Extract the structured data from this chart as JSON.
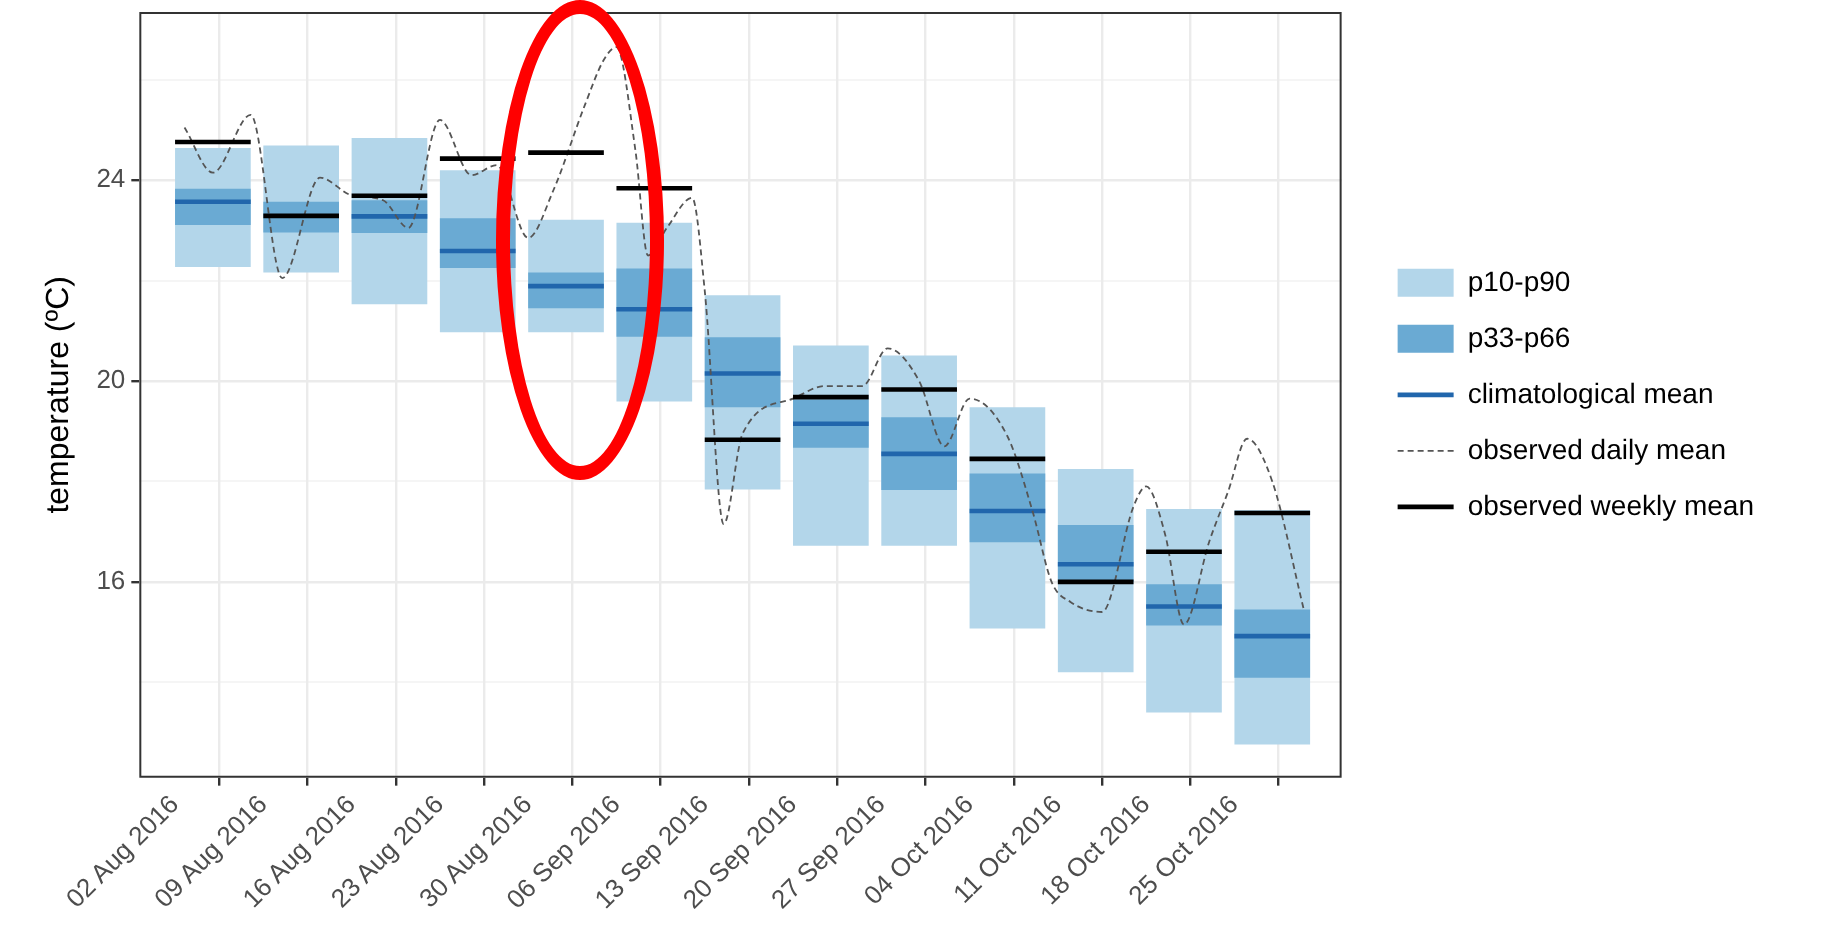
{
  "chart_data": {
    "type": "bar",
    "ylabel": "temperature (ºC)",
    "xlim": [
      "2016-07-30T04:00",
      "2016-11-02T12:00"
    ],
    "xticks": [
      {
        "value": "2016-08-02",
        "label": "02 Aug 2016"
      },
      {
        "value": "2016-08-09",
        "label": "09 Aug 2016"
      },
      {
        "value": "2016-08-16",
        "label": "16 Aug 2016"
      },
      {
        "value": "2016-08-23",
        "label": "23 Aug 2016"
      },
      {
        "value": "2016-08-30",
        "label": "30 Aug 2016"
      },
      {
        "value": "2016-09-06",
        "label": "06 Sep 2016"
      },
      {
        "value": "2016-09-13",
        "label": "13 Sep 2016"
      },
      {
        "value": "2016-09-20",
        "label": "20 Sep 2016"
      },
      {
        "value": "2016-09-27",
        "label": "27 Sep 2016"
      },
      {
        "value": "2016-10-04",
        "label": "04 Oct 2016"
      },
      {
        "value": "2016-10-11",
        "label": "11 Oct 2016"
      },
      {
        "value": "2016-10-18",
        "label": "18 Oct 2016"
      },
      {
        "value": "2016-10-25",
        "label": "25 Oct 2016"
      }
    ],
    "ylim": [
      12.1,
      27.35
    ],
    "yticks": [
      {
        "value": 14,
        "label": null
      },
      16,
      {
        "value": 18,
        "label": null
      },
      20,
      {
        "value": 22,
        "label": null
      },
      24,
      {
        "value": 26,
        "label": null
      }
    ],
    "grid": true,
    "legend": "right",
    "marker": "none",
    "series": [
      {
        "name": "p10-p90",
        "color": "#b3d6ea",
        "x": [
          "2016-08-05",
          "2016-08-12",
          "2016-08-19",
          "2016-08-26",
          "2016-09-02",
          "2016-09-09",
          "2016-09-16",
          "2016-09-23",
          "2016-09-30",
          "2016-10-07",
          "2016-10-14",
          "2016-10-21",
          "2016-10-28"
        ],
        "base": [
          22.27,
          22.16,
          21.53,
          20.97,
          20.97,
          19.59,
          17.84,
          16.72,
          16.72,
          15.07,
          14.2,
          13.4,
          12.76
        ],
        "values": [
          2.37,
          2.53,
          3.31,
          3.23,
          2.24,
          3.56,
          3.87,
          3.99,
          3.79,
          4.41,
          4.05,
          4.05,
          4.67
        ]
      },
      {
        "name": "p33-p66",
        "color": "#6aaad3",
        "x": [
          "2016-08-05",
          "2016-08-12",
          "2016-08-19",
          "2016-08-26",
          "2016-09-02",
          "2016-09-09",
          "2016-09-16",
          "2016-09-23",
          "2016-09-30",
          "2016-10-07",
          "2016-10-14",
          "2016-10-21",
          "2016-10-28"
        ],
        "base": [
          23.11,
          22.96,
          22.95,
          22.25,
          21.45,
          20.88,
          19.48,
          18.67,
          17.83,
          16.79,
          16.0,
          15.13,
          14.09
        ],
        "values": [
          0.72,
          0.61,
          0.65,
          0.99,
          0.71,
          1.36,
          1.39,
          0.96,
          1.45,
          1.37,
          1.13,
          0.82,
          1.36
        ]
      },
      {
        "name": "climatological mean",
        "type": "line",
        "color": "#2166ac",
        "x": [
          "2016-08-02",
          "2016-08-08"
        ],
        "values": [
          23.57,
          23.57
        ]
      },
      {
        "type": "line",
        "color": "#2166ac",
        "x": [
          "2016-08-16",
          "2016-08-22"
        ],
        "values": [
          23.28,
          23.28
        ]
      },
      {
        "type": "line",
        "color": "#2166ac",
        "x": [
          "2016-08-23",
          "2016-08-29"
        ],
        "values": [
          22.59,
          22.59
        ]
      },
      {
        "type": "line",
        "color": "#2166ac",
        "x": [
          "2016-08-30",
          "2016-09-05"
        ],
        "values": [
          21.89,
          21.89
        ]
      },
      {
        "type": "line",
        "color": "#2166ac",
        "x": [
          "2016-09-06",
          "2016-09-12"
        ],
        "values": [
          21.43,
          21.43
        ]
      },
      {
        "type": "line",
        "color": "#2166ac",
        "x": [
          "2016-09-13",
          "2016-09-19"
        ],
        "values": [
          20.15,
          20.15
        ]
      },
      {
        "type": "line",
        "color": "#2166ac",
        "x": [
          "2016-09-20",
          "2016-09-26"
        ],
        "values": [
          19.15,
          19.15
        ]
      },
      {
        "type": "line",
        "color": "#2166ac",
        "x": [
          "2016-09-27",
          "2016-10-03"
        ],
        "values": [
          18.55,
          18.55
        ]
      },
      {
        "type": "line",
        "color": "#2166ac",
        "x": [
          "2016-10-04",
          "2016-10-10"
        ],
        "values": [
          17.41,
          17.41
        ]
      },
      {
        "type": "line",
        "color": "#2166ac",
        "x": [
          "2016-10-11",
          "2016-10-17"
        ],
        "values": [
          16.35,
          16.35
        ]
      },
      {
        "type": "line",
        "color": "#2166ac",
        "x": [
          "2016-10-18",
          "2016-10-24"
        ],
        "values": [
          15.51,
          15.51
        ]
      },
      {
        "type": "line",
        "color": "#2166ac",
        "x": [
          "2016-10-25",
          "2016-10-31"
        ],
        "values": [
          14.92,
          14.92
        ]
      },
      {
        "name": "observed daily mean",
        "type": "line",
        "color": "#555555",
        "line_style": "dashed",
        "x": [
          "2016-08-02T18:00",
          "2016-08-05",
          "2016-08-08",
          "2016-08-10T12:00",
          "2016-08-13T12:00",
          "2016-08-16",
          "2016-08-18T12:00",
          "2016-08-20T12:00",
          "2016-08-23",
          "2016-08-25T12:00",
          "2016-08-27T12:00",
          "2016-08-30",
          "2016-09-01",
          "2016-09-03T12:00",
          "2016-09-05",
          "2016-09-06",
          "2016-09-07T12:00",
          "2016-09-08T12:00",
          "2016-09-10",
          "2016-09-12",
          "2016-09-13",
          "2016-09-14T12:00",
          "2016-09-16",
          "2016-09-20",
          "2016-09-22T12:00",
          "2016-09-25T12:00",
          "2016-09-27T12:00",
          "2016-09-30",
          "2016-10-02",
          "2016-10-04",
          "2016-10-07",
          "2016-10-09",
          "2016-10-10T12:00",
          "2016-10-12",
          "2016-10-14T12:00",
          "2016-10-17",
          "2016-10-18",
          "2016-10-19T12:00",
          "2016-10-21",
          "2016-10-23",
          "2016-10-24T12:00",
          "2016-10-26",
          "2016-10-28",
          "2016-10-30T12:00"
        ],
        "values": [
          25.05,
          24.15,
          25.3,
          22.05,
          24.05,
          23.7,
          23.6,
          23.05,
          25.2,
          24.1,
          24.3,
          22.85,
          23.8,
          25.5,
          26.4,
          26.65,
          24.6,
          22.5,
          23.05,
          23.65,
          21.8,
          17.15,
          18.95,
          19.65,
          19.9,
          19.9,
          20.65,
          20.0,
          18.7,
          19.65,
          18.9,
          17.4,
          16.0,
          15.6,
          15.4,
          17.5,
          17.9,
          16.95,
          15.15,
          16.8,
          17.8,
          18.85,
          18.0,
          15.45
        ]
      },
      {
        "name": "observed weekly mean",
        "type": "line",
        "color": "#000000",
        "x": [
          "2016-08-02",
          "2016-08-08"
        ],
        "values": [
          24.76,
          24.76
        ]
      },
      {
        "type": "line",
        "color": "#000000",
        "x": [
          "2016-08-09",
          "2016-08-15"
        ],
        "values": [
          23.29,
          23.29
        ]
      },
      {
        "type": "line",
        "color": "#000000",
        "x": [
          "2016-08-16",
          "2016-08-22"
        ],
        "values": [
          23.69,
          23.69
        ]
      },
      {
        "type": "line",
        "color": "#000000",
        "x": [
          "2016-08-23",
          "2016-08-29"
        ],
        "values": [
          24.43,
          24.43
        ]
      },
      {
        "type": "line",
        "color": "#000000",
        "x": [
          "2016-08-30",
          "2016-09-05"
        ],
        "values": [
          24.55,
          24.55
        ]
      },
      {
        "type": "line",
        "color": "#000000",
        "x": [
          "2016-09-06",
          "2016-09-12"
        ],
        "values": [
          23.84,
          23.84
        ]
      },
      {
        "type": "line",
        "color": "#000000",
        "x": [
          "2016-09-13",
          "2016-09-19"
        ],
        "values": [
          18.83,
          18.83
        ]
      },
      {
        "type": "line",
        "color": "#000000",
        "x": [
          "2016-09-20",
          "2016-09-26"
        ],
        "values": [
          19.68,
          19.68
        ]
      },
      {
        "type": "line",
        "color": "#000000",
        "x": [
          "2016-09-27",
          "2016-10-03"
        ],
        "values": [
          19.83,
          19.83
        ]
      },
      {
        "type": "line",
        "color": "#000000",
        "x": [
          "2016-10-04",
          "2016-10-10"
        ],
        "values": [
          18.45,
          18.45
        ]
      },
      {
        "type": "line",
        "color": "#000000",
        "x": [
          "2016-10-11",
          "2016-10-17"
        ],
        "values": [
          16.0,
          16.0
        ]
      },
      {
        "type": "line",
        "color": "#000000",
        "x": [
          "2016-10-18",
          "2016-10-24"
        ],
        "values": [
          16.6,
          16.6
        ]
      },
      {
        "type": "line",
        "color": "#000000",
        "x": [
          "2016-10-25",
          "2016-10-31"
        ],
        "values": [
          17.37,
          17.37
        ]
      }
    ]
  }
}
